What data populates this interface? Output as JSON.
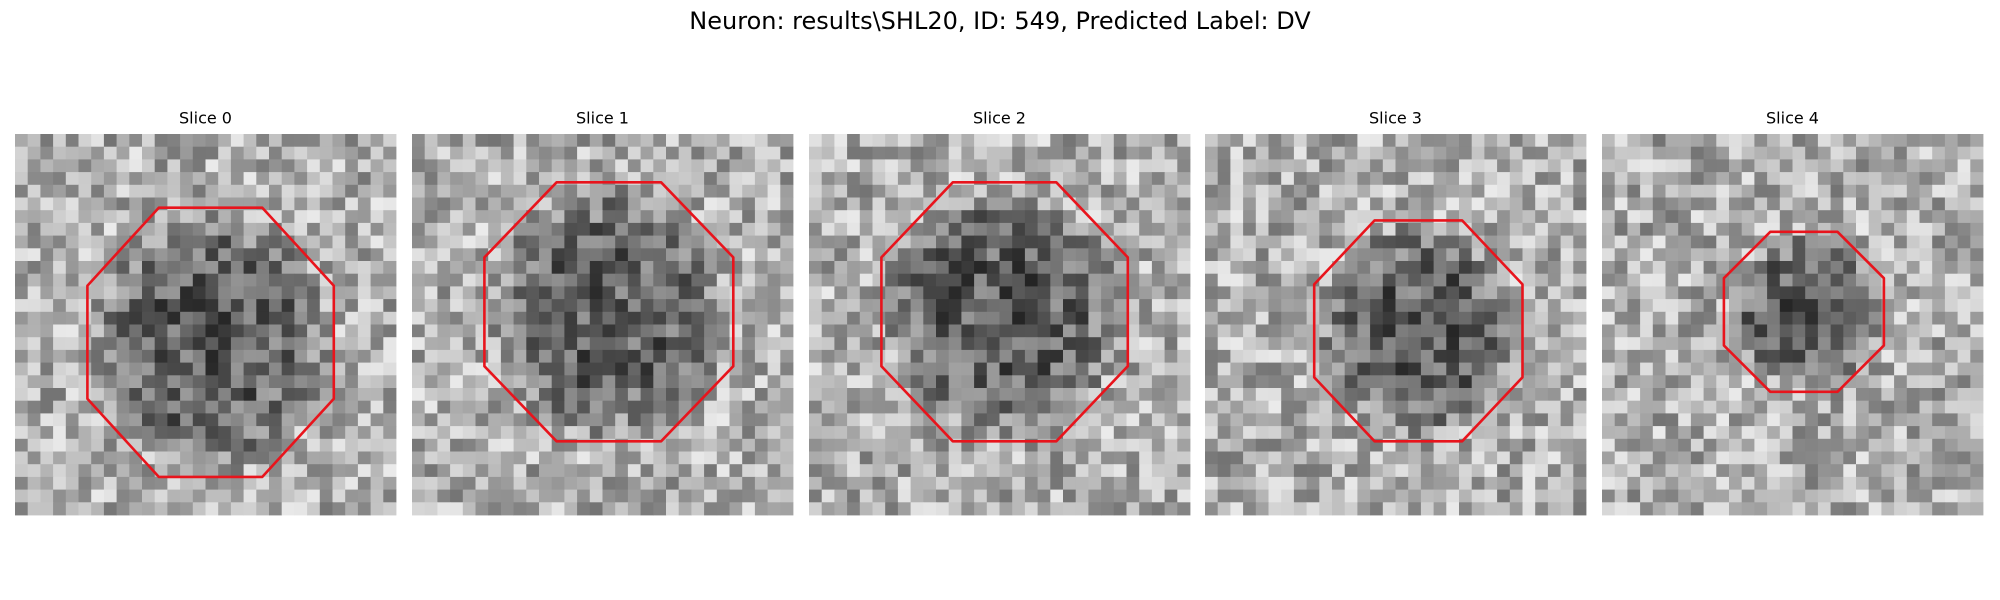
{
  "title": "Neuron: results\\SHL20, ID: 549, Predicted Label: DV",
  "panels": [
    {
      "title": "Slice 0"
    },
    {
      "title": "Slice 1"
    },
    {
      "title": "Slice 2"
    },
    {
      "title": "Slice 3"
    },
    {
      "title": "Slice 4"
    }
  ]
}
